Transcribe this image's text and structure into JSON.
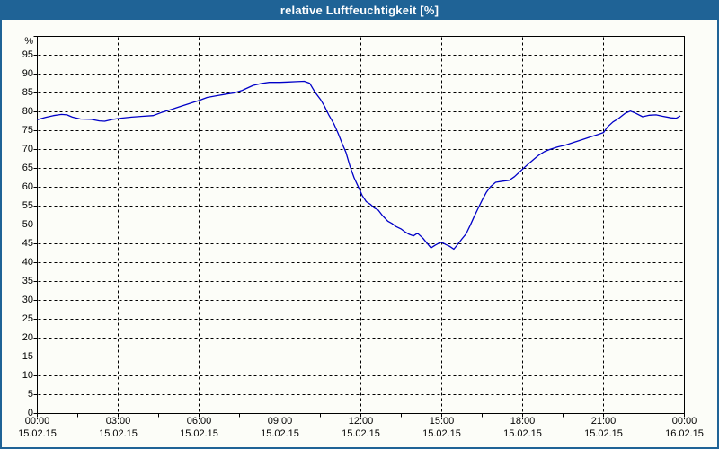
{
  "title": "relative Luftfeuchtigkeit [%]",
  "colors": {
    "frame_blue": "#1f6396",
    "line_blue": "#0000c8",
    "background": "#fcfdf8",
    "plot_background": "#fdfefd",
    "grid": "#000000",
    "text": "#000000",
    "title_text": "#ffffff"
  },
  "chart_data": {
    "type": "line",
    "title": "relative Luftfeuchtigkeit [%]",
    "xlabel": "",
    "ylabel": "%",
    "y_unit_label": "%",
    "ylim": [
      0,
      100
    ],
    "ytick_step": 5,
    "ytick_labels": [
      "0",
      "5",
      "10",
      "15",
      "20",
      "25",
      "30",
      "35",
      "40",
      "45",
      "50",
      "55",
      "60",
      "65",
      "70",
      "75",
      "80",
      "85",
      "90",
      "95"
    ],
    "x_range_hours": [
      0,
      24
    ],
    "x_major_step_hours": 3,
    "x_minor_tick_hours": 1.5,
    "grid": "dashed-both-axes",
    "legend_position": "none",
    "x_tick_labels": [
      {
        "time": "00:00",
        "date": "15.02.15"
      },
      {
        "time": "03:00",
        "date": "15.02.15"
      },
      {
        "time": "06:00",
        "date": "15.02.15"
      },
      {
        "time": "09:00",
        "date": "15.02.15"
      },
      {
        "time": "12:00",
        "date": "15.02.15"
      },
      {
        "time": "15:00",
        "date": "15.02.15"
      },
      {
        "time": "18:00",
        "date": "15.02.15"
      },
      {
        "time": "21:00",
        "date": "15.02.15"
      },
      {
        "time": "00:00",
        "date": "16.02.15"
      }
    ],
    "series": [
      {
        "name": "relative Luftfeuchtigkeit",
        "color": "#0000c8",
        "points": [
          [
            0.0,
            77.9
          ],
          [
            0.3,
            78.5
          ],
          [
            0.6,
            79.0
          ],
          [
            0.9,
            79.3
          ],
          [
            1.1,
            79.2
          ],
          [
            1.3,
            78.6
          ],
          [
            1.6,
            78.1
          ],
          [
            2.0,
            78.0
          ],
          [
            2.3,
            77.6
          ],
          [
            2.5,
            77.5
          ],
          [
            2.8,
            78.0
          ],
          [
            3.1,
            78.3
          ],
          [
            3.5,
            78.6
          ],
          [
            3.9,
            78.8
          ],
          [
            4.3,
            79.0
          ],
          [
            4.6,
            79.8
          ],
          [
            5.0,
            80.7
          ],
          [
            5.3,
            81.4
          ],
          [
            5.7,
            82.3
          ],
          [
            6.0,
            83.0
          ],
          [
            6.3,
            83.8
          ],
          [
            6.6,
            84.2
          ],
          [
            7.0,
            84.7
          ],
          [
            7.3,
            85.0
          ],
          [
            7.6,
            85.7
          ],
          [
            8.0,
            87.0
          ],
          [
            8.3,
            87.5
          ],
          [
            8.6,
            87.8
          ],
          [
            9.0,
            87.8
          ],
          [
            9.3,
            87.9
          ],
          [
            9.6,
            88.0
          ],
          [
            9.9,
            88.1
          ],
          [
            10.1,
            87.6
          ],
          [
            10.3,
            85.2
          ],
          [
            10.5,
            83.3
          ],
          [
            10.65,
            81.5
          ],
          [
            10.8,
            79.3
          ],
          [
            11.0,
            76.8
          ],
          [
            11.15,
            74.4
          ],
          [
            11.3,
            71.7
          ],
          [
            11.45,
            69.2
          ],
          [
            11.6,
            65.5
          ],
          [
            11.75,
            62.5
          ],
          [
            11.9,
            60.2
          ],
          [
            12.05,
            57.8
          ],
          [
            12.2,
            56.2
          ],
          [
            12.35,
            55.5
          ],
          [
            12.5,
            54.5
          ],
          [
            12.65,
            53.9
          ],
          [
            12.8,
            52.5
          ],
          [
            13.0,
            51.0
          ],
          [
            13.15,
            50.4
          ],
          [
            13.3,
            49.6
          ],
          [
            13.5,
            48.9
          ],
          [
            13.65,
            48.1
          ],
          [
            13.8,
            47.5
          ],
          [
            13.95,
            47.1
          ],
          [
            14.1,
            47.8
          ],
          [
            14.3,
            46.5
          ],
          [
            14.45,
            45.2
          ],
          [
            14.6,
            43.9
          ],
          [
            14.75,
            44.6
          ],
          [
            14.9,
            45.2
          ],
          [
            15.0,
            45.4
          ],
          [
            15.15,
            44.8
          ],
          [
            15.3,
            44.3
          ],
          [
            15.45,
            43.6
          ],
          [
            15.6,
            44.9
          ],
          [
            15.75,
            46.3
          ],
          [
            15.9,
            47.6
          ],
          [
            16.05,
            49.8
          ],
          [
            16.2,
            52.2
          ],
          [
            16.35,
            54.4
          ],
          [
            16.5,
            56.6
          ],
          [
            16.65,
            58.6
          ],
          [
            16.8,
            60.1
          ],
          [
            17.0,
            61.3
          ],
          [
            17.25,
            61.6
          ],
          [
            17.5,
            61.8
          ],
          [
            17.7,
            62.8
          ],
          [
            17.85,
            63.8
          ],
          [
            18.0,
            64.8
          ],
          [
            18.2,
            66.1
          ],
          [
            18.4,
            67.3
          ],
          [
            18.6,
            68.5
          ],
          [
            18.8,
            69.4
          ],
          [
            19.0,
            70.0
          ],
          [
            19.3,
            70.7
          ],
          [
            19.6,
            71.2
          ],
          [
            19.9,
            71.9
          ],
          [
            20.2,
            72.6
          ],
          [
            20.5,
            73.3
          ],
          [
            20.8,
            74.0
          ],
          [
            21.0,
            74.5
          ],
          [
            21.15,
            76.0
          ],
          [
            21.35,
            77.3
          ],
          [
            21.55,
            78.2
          ],
          [
            21.8,
            79.6
          ],
          [
            22.0,
            80.2
          ],
          [
            22.2,
            79.6
          ],
          [
            22.45,
            78.7
          ],
          [
            22.7,
            79.1
          ],
          [
            22.95,
            79.2
          ],
          [
            23.2,
            78.8
          ],
          [
            23.5,
            78.4
          ],
          [
            23.7,
            78.3
          ],
          [
            23.85,
            78.9
          ]
        ]
      }
    ]
  }
}
